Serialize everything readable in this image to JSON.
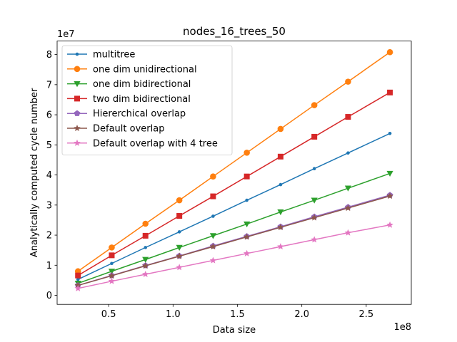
{
  "chart_data": {
    "type": "line",
    "title": "nodes_16_trees_50",
    "xlabel": "Data size",
    "ylabel": "Analytically computed cycle number",
    "x_offset_label": "1e8",
    "y_offset_label": "1e7",
    "xlim": [
      0.1,
      2.85
    ],
    "ylim": [
      -0.3,
      8.45
    ],
    "xticks": [
      0.5,
      1.0,
      1.5,
      2.0,
      2.5
    ],
    "xtick_labels": [
      "0.5",
      "1.0",
      "1.5",
      "2.0",
      "2.5"
    ],
    "yticks": [
      0,
      1,
      2,
      3,
      4,
      5,
      6,
      7,
      8
    ],
    "ytick_labels": [
      "0",
      "1",
      "2",
      "3",
      "4",
      "5",
      "6",
      "7",
      "8"
    ],
    "grid": false,
    "legend_position": "top-left",
    "x": [
      0.262,
      0.524,
      0.786,
      1.049,
      1.311,
      1.573,
      1.835,
      2.097,
      2.359,
      2.684
    ],
    "series": [
      {
        "name": "multitree",
        "color": "#1f77b4",
        "marker": "point",
        "values": [
          0.53,
          1.06,
          1.59,
          2.11,
          2.63,
          3.16,
          3.68,
          4.21,
          4.73,
          5.38
        ]
      },
      {
        "name": "one dim unidirectional",
        "color": "#ff7f0e",
        "marker": "circle",
        "values": [
          0.8,
          1.59,
          2.38,
          3.16,
          3.95,
          4.74,
          5.53,
          6.32,
          7.1,
          8.08
        ]
      },
      {
        "name": "one dim bidirectional",
        "color": "#2ca02c",
        "marker": "triangle-down",
        "values": [
          0.4,
          0.8,
          1.19,
          1.59,
          1.98,
          2.37,
          2.77,
          3.16,
          3.56,
          4.05
        ]
      },
      {
        "name": "two dim bidirectional",
        "color": "#d62728",
        "marker": "square",
        "values": [
          0.66,
          1.33,
          1.98,
          2.64,
          3.29,
          3.95,
          4.61,
          5.27,
          5.93,
          6.74
        ]
      },
      {
        "name": "Hiererchical overlap",
        "color": "#9467bd",
        "marker": "pentagon",
        "values": [
          0.33,
          0.66,
          0.99,
          1.31,
          1.64,
          1.96,
          2.28,
          2.61,
          2.93,
          3.33
        ]
      },
      {
        "name": "Default overlap",
        "color": "#8c564b",
        "marker": "star",
        "values": [
          0.33,
          0.65,
          0.98,
          1.3,
          1.62,
          1.94,
          2.26,
          2.58,
          2.9,
          3.3
        ]
      },
      {
        "name": "Default overlap with 4 tree",
        "color": "#e377c2",
        "marker": "star",
        "values": [
          0.23,
          0.47,
          0.7,
          0.93,
          1.16,
          1.39,
          1.62,
          1.85,
          2.08,
          2.34
        ]
      }
    ]
  }
}
